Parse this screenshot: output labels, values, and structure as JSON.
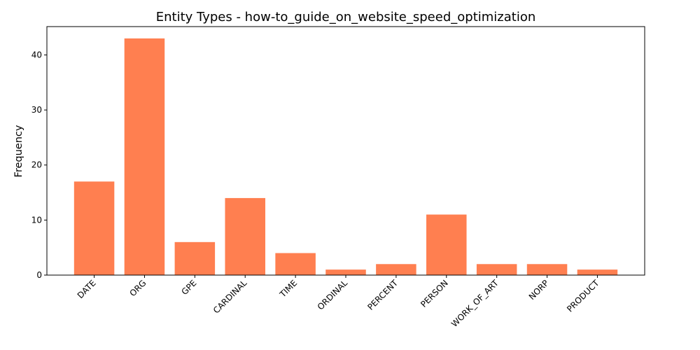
{
  "chart_data": {
    "type": "bar",
    "title": "Entity Types - how-to_guide_on_website_speed_optimization",
    "xlabel": "",
    "ylabel": "Frequency",
    "categories": [
      "DATE",
      "ORG",
      "GPE",
      "CARDINAL",
      "TIME",
      "ORDINAL",
      "PERCENT",
      "PERSON",
      "WORK_OF_ART",
      "NORP",
      "PRODUCT"
    ],
    "values": [
      17,
      43,
      6,
      14,
      4,
      1,
      2,
      11,
      2,
      2,
      1
    ],
    "ylim": [
      0,
      45.15
    ],
    "yticks": [
      0,
      10,
      20,
      30,
      40
    ],
    "bar_color": "#ff7f50",
    "grid": false,
    "legend": "none"
  }
}
